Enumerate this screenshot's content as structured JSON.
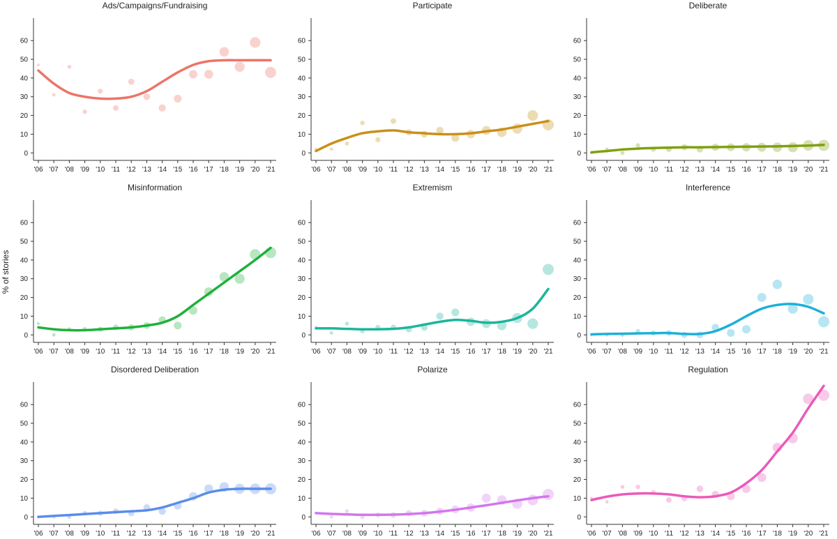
{
  "figure": {
    "ylabel": "% of stories"
  },
  "chart_data": [
    {
      "type": "scatter",
      "title": "Ads/Campaigns/Fundraising",
      "color": "#ED7468",
      "x": [
        "'06",
        "'07",
        "'08",
        "'09",
        "'10",
        "'11",
        "'12",
        "'13",
        "'14",
        "'15",
        "'16",
        "'17",
        "'18",
        "'19",
        "'20",
        "'21"
      ],
      "y": [
        47,
        31,
        46,
        22,
        33,
        24,
        38,
        30,
        24,
        29,
        42,
        42,
        54,
        46,
        59,
        43
      ],
      "smooth": [
        44,
        37,
        32,
        30,
        29,
        29,
        30,
        33,
        38,
        43,
        47,
        49,
        49.5,
        49.5,
        49.5,
        49.5
      ],
      "yticks": [
        0,
        10,
        20,
        30,
        40,
        50,
        60
      ],
      "ylim": [
        -4,
        72
      ]
    },
    {
      "type": "scatter",
      "title": "Participate",
      "color": "#C8901A",
      "x": [
        "'06",
        "'07",
        "'08",
        "'09",
        "'10",
        "'11",
        "'12",
        "'13",
        "'14",
        "'15",
        "'16",
        "'17",
        "'18",
        "'19",
        "'20",
        "'21"
      ],
      "y": [
        2,
        2,
        5,
        16,
        7,
        17,
        11,
        10,
        12,
        8,
        10,
        12,
        11,
        13,
        20,
        15
      ],
      "smooth": [
        1,
        5,
        8,
        10.5,
        11.5,
        12,
        11,
        10.5,
        10,
        10,
        10.5,
        11.5,
        12.5,
        14,
        15.5,
        17
      ],
      "yticks": [
        0,
        10,
        20,
        30,
        40,
        50,
        60
      ],
      "ylim": [
        -4,
        72
      ]
    },
    {
      "type": "scatter",
      "title": "Deliberate",
      "color": "#7FA010",
      "x": [
        "'06",
        "'07",
        "'08",
        "'09",
        "'10",
        "'11",
        "'12",
        "'13",
        "'14",
        "'15",
        "'16",
        "'17",
        "'18",
        "'19",
        "'20",
        "'21"
      ],
      "y": [
        0,
        2,
        0,
        4,
        2,
        2,
        3,
        2,
        3,
        3,
        3,
        3,
        3,
        3,
        4,
        4
      ],
      "smooth": [
        0.3,
        1,
        1.8,
        2.3,
        2.6,
        2.8,
        3,
        3,
        3.1,
        3.2,
        3.3,
        3.4,
        3.5,
        3.7,
        3.9,
        4.3
      ],
      "yticks": [
        0,
        10,
        20,
        30,
        40,
        50,
        60
      ],
      "ylim": [
        -4,
        72
      ]
    },
    {
      "type": "scatter",
      "title": "Misinformation",
      "color": "#1FB03C",
      "x": [
        "'06",
        "'07",
        "'08",
        "'09",
        "'10",
        "'11",
        "'12",
        "'13",
        "'14",
        "'15",
        "'16",
        "'17",
        "'18",
        "'19",
        "'20",
        "'21"
      ],
      "y": [
        6,
        0,
        3,
        3,
        3,
        4,
        4,
        5,
        8,
        5,
        13,
        23,
        31,
        30,
        43,
        44
      ],
      "smooth": [
        4,
        3,
        2.5,
        2.5,
        3,
        3.5,
        4,
        5,
        6.5,
        10,
        16,
        22,
        28,
        34,
        40,
        46.5
      ],
      "yticks": [
        0,
        10,
        20,
        30,
        40,
        50,
        60
      ],
      "ylim": [
        -4,
        72
      ]
    },
    {
      "type": "scatter",
      "title": "Extremism",
      "color": "#1CB59C",
      "x": [
        "'06",
        "'07",
        "'08",
        "'09",
        "'10",
        "'11",
        "'12",
        "'13",
        "'14",
        "'15",
        "'16",
        "'17",
        "'18",
        "'19",
        "'20",
        "'21"
      ],
      "y": [
        4,
        1,
        6,
        2,
        4,
        4,
        3,
        4,
        10,
        12,
        7,
        6,
        5,
        9,
        6,
        35
      ],
      "smooth": [
        3.5,
        3.5,
        3.2,
        3,
        3,
        3.2,
        4,
        5.5,
        7,
        8,
        7.5,
        6.5,
        7,
        9,
        14,
        24.5
      ],
      "yticks": [
        0,
        10,
        20,
        30,
        40,
        50,
        60
      ],
      "ylim": [
        -4,
        72
      ]
    },
    {
      "type": "scatter",
      "title": "Interference",
      "color": "#1CB0D8",
      "x": [
        "'06",
        "'07",
        "'08",
        "'09",
        "'10",
        "'11",
        "'12",
        "'13",
        "'14",
        "'15",
        "'16",
        "'17",
        "'18",
        "'19",
        "'20",
        "'21"
      ],
      "y": [
        0,
        0,
        0,
        2,
        1,
        1,
        0,
        0,
        4,
        1,
        3,
        20,
        27,
        14,
        19,
        7
      ],
      "smooth": [
        0.3,
        0.5,
        0.6,
        0.8,
        0.9,
        1,
        0.5,
        0.5,
        2,
        5.5,
        10,
        14,
        16,
        16.5,
        15,
        11.5
      ],
      "yticks": [
        0,
        10,
        20,
        30,
        40,
        50,
        60
      ],
      "ylim": [
        -4,
        72
      ]
    },
    {
      "type": "scatter",
      "title": "Disordered Deliberation",
      "color": "#5A8DEB",
      "x": [
        "'06",
        "'07",
        "'08",
        "'09",
        "'10",
        "'11",
        "'12",
        "'13",
        "'14",
        "'15",
        "'16",
        "'17",
        "'18",
        "'19",
        "'20",
        "'21"
      ],
      "y": [
        0,
        0,
        0,
        2,
        2,
        3,
        2,
        5,
        3,
        6,
        11,
        15,
        16,
        15,
        15,
        15
      ],
      "smooth": [
        0,
        0.5,
        1,
        1.5,
        2,
        2.5,
        3,
        3.5,
        5,
        7.5,
        10,
        13,
        14.5,
        15,
        15,
        15
      ],
      "yticks": [
        0,
        10,
        20,
        30,
        40,
        50,
        60
      ],
      "ylim": [
        -4,
        72
      ]
    },
    {
      "type": "scatter",
      "title": "Polarize",
      "color": "#D376EC",
      "x": [
        "'06",
        "'07",
        "'08",
        "'09",
        "'10",
        "'11",
        "'12",
        "'13",
        "'14",
        "'15",
        "'16",
        "'17",
        "'18",
        "'19",
        "'20",
        "'21"
      ],
      "y": [
        2,
        0,
        3,
        0,
        1,
        1,
        2,
        2,
        3,
        4,
        5,
        10,
        9,
        7,
        9,
        12
      ],
      "smooth": [
        2,
        1.6,
        1.3,
        1.1,
        1.1,
        1.2,
        1.5,
        2,
        2.8,
        3.8,
        5,
        6.2,
        7.5,
        8.8,
        10,
        11
      ],
      "yticks": [
        0,
        10,
        20,
        30,
        40,
        50,
        60
      ],
      "ylim": [
        -4,
        72
      ]
    },
    {
      "type": "scatter",
      "title": "Regulation",
      "color": "#EA5ABA",
      "x": [
        "'06",
        "'07",
        "'08",
        "'09",
        "'10",
        "'11",
        "'12",
        "'13",
        "'14",
        "'15",
        "'16",
        "'17",
        "'18",
        "'19",
        "'20",
        "'21"
      ],
      "y": [
        10,
        8,
        16,
        16,
        13,
        9,
        10,
        15,
        12,
        11,
        15,
        21,
        37,
        42,
        63,
        65
      ],
      "smooth": [
        9,
        10.8,
        12,
        12.5,
        12.5,
        12,
        11,
        10.5,
        11,
        13,
        18,
        25,
        35,
        45,
        58,
        70
      ],
      "yticks": [
        0,
        10,
        20,
        30,
        40,
        50,
        60
      ],
      "ylim": [
        -4,
        72
      ]
    }
  ]
}
